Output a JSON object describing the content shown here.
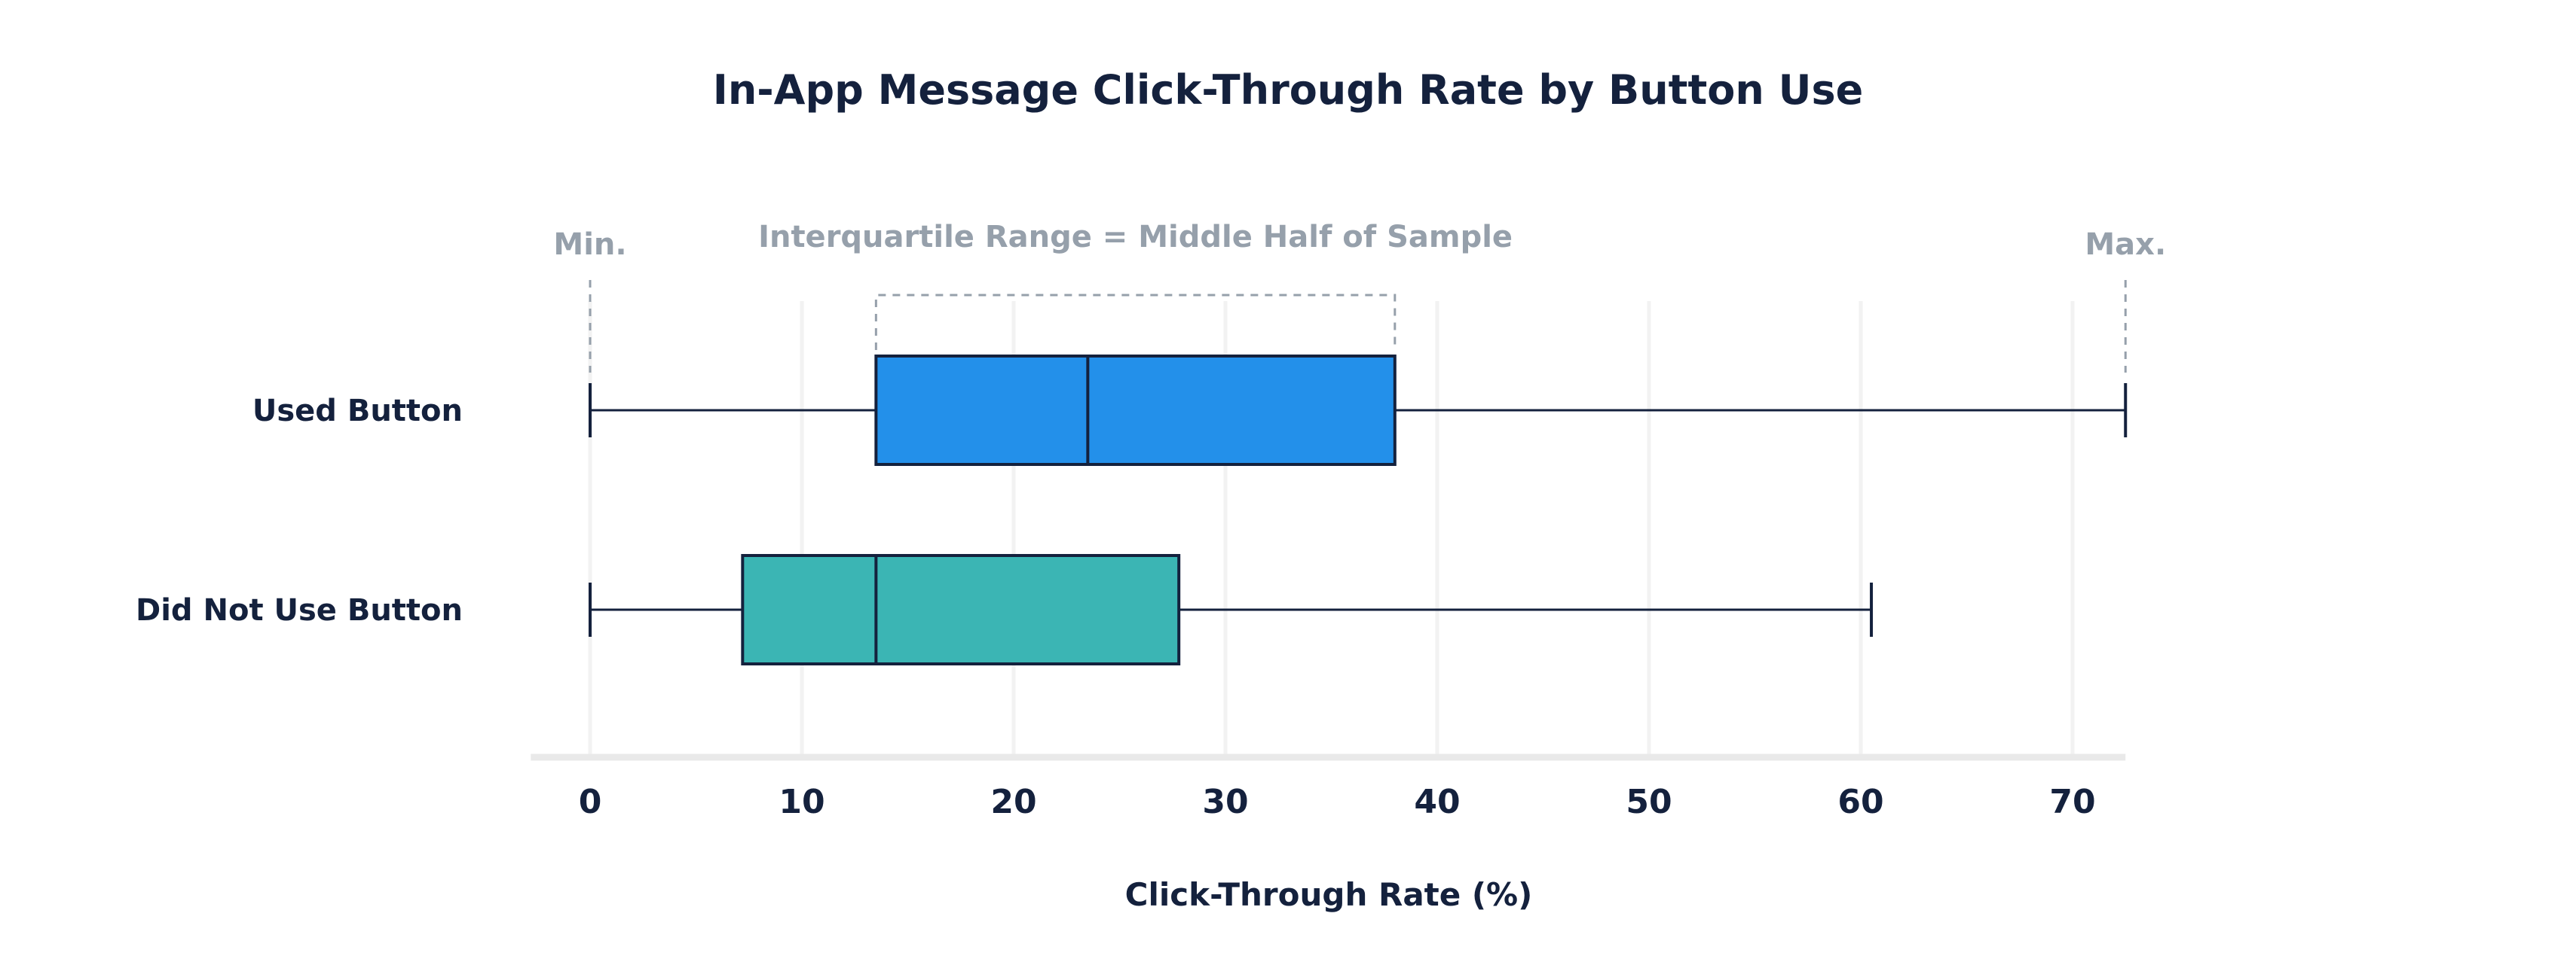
{
  "chart_data": {
    "type": "boxplot",
    "title": "In-App Message Click-Through Rate by Button Use",
    "xlabel": "Click-Through Rate (%)",
    "ylabel": "",
    "xlim": [
      -2.8,
      72.5
    ],
    "xticks": [
      0,
      10,
      20,
      30,
      40,
      50,
      60,
      70
    ],
    "xtick_labels": [
      "0",
      "10",
      "20",
      "30",
      "40",
      "50",
      "60",
      "70"
    ],
    "grid": true,
    "categories": [
      "Used Button",
      "Did Not Use Button"
    ],
    "series": [
      {
        "category": "Used Button",
        "min": 0,
        "q1": 13.5,
        "median": 23.5,
        "q3": 38,
        "max": 72.5,
        "color": "#2390ea"
      },
      {
        "category": "Did Not Use Button",
        "min": 0,
        "q1": 7.2,
        "median": 13.5,
        "q3": 27.8,
        "max": 60.5,
        "color": "#3bb5b4"
      }
    ],
    "annotations": {
      "min_label": "Min.",
      "max_label": "Max.",
      "iqr_label": "Interquartile Range = Middle Half of Sample"
    },
    "colors": {
      "text": "#14213d",
      "annotation": "#96a0ab",
      "grid": "#f2f2f2",
      "axis": "#e9e9e9",
      "stroke": "#14213d"
    }
  }
}
